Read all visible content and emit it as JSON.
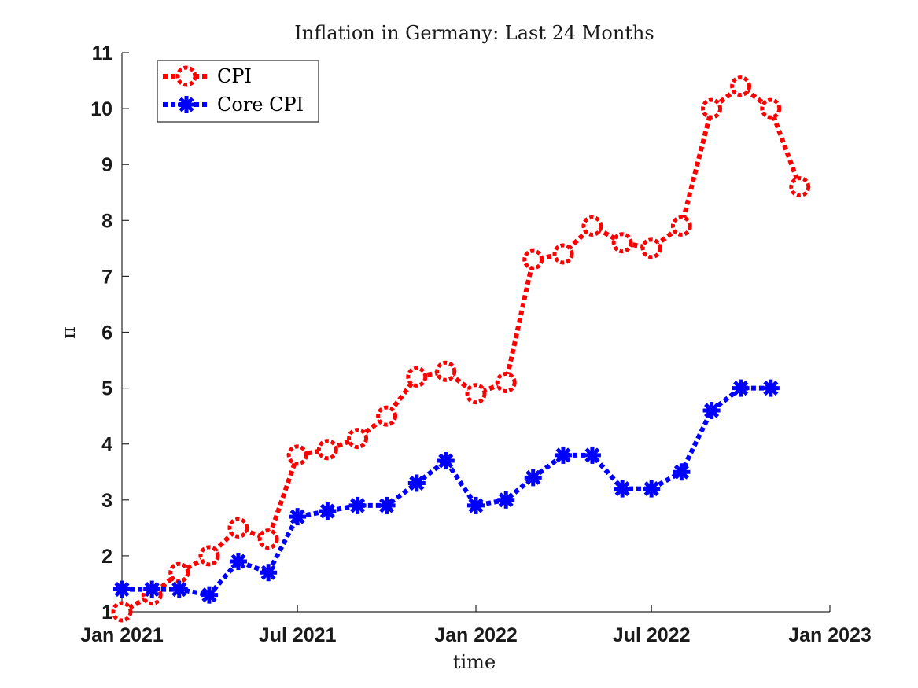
{
  "chart_data": {
    "type": "line",
    "title": "Inflation in Germany: Last 24 Months",
    "xlabel": "time",
    "ylabel": "π",
    "x_type": "date",
    "xlim": [
      "2021-01-01",
      "2023-01-01"
    ],
    "ylim": [
      1,
      11
    ],
    "x_ticks": [
      {
        "date": "2021-01-01",
        "label": "Jan 2021"
      },
      {
        "date": "2021-07-01",
        "label": "Jul 2021"
      },
      {
        "date": "2022-01-01",
        "label": "Jan 2022"
      },
      {
        "date": "2022-07-01",
        "label": "Jul 2022"
      },
      {
        "date": "2023-01-01",
        "label": "Jan 2023"
      }
    ],
    "y_ticks": [
      1,
      2,
      3,
      4,
      5,
      6,
      7,
      8,
      9,
      10,
      11
    ],
    "grid": false,
    "legend_position": "top-left",
    "series": [
      {
        "name": "CPI",
        "color": "#ff0000",
        "line_style": "dotted",
        "marker": "circle",
        "x": [
          "2021-01-01",
          "2021-02-01",
          "2021-03-01",
          "2021-04-01",
          "2021-05-01",
          "2021-06-01",
          "2021-07-01",
          "2021-08-01",
          "2021-09-01",
          "2021-10-01",
          "2021-11-01",
          "2021-12-01",
          "2022-01-01",
          "2022-02-01",
          "2022-03-01",
          "2022-04-01",
          "2022-05-01",
          "2022-06-01",
          "2022-07-01",
          "2022-08-01",
          "2022-09-01",
          "2022-10-01",
          "2022-11-01",
          "2022-12-01"
        ],
        "values": [
          1.0,
          1.3,
          1.7,
          2.0,
          2.5,
          2.3,
          3.8,
          3.9,
          4.1,
          4.5,
          5.2,
          5.3,
          4.9,
          5.1,
          7.3,
          7.4,
          7.9,
          7.6,
          7.5,
          7.9,
          10.0,
          10.4,
          10.0,
          8.6
        ]
      },
      {
        "name": "Core CPI",
        "color": "#0000ff",
        "line_style": "dotted",
        "marker": "star",
        "x": [
          "2021-01-01",
          "2021-02-01",
          "2021-03-01",
          "2021-04-01",
          "2021-05-01",
          "2021-06-01",
          "2021-07-01",
          "2021-08-01",
          "2021-09-01",
          "2021-10-01",
          "2021-11-01",
          "2021-12-01",
          "2022-01-01",
          "2022-02-01",
          "2022-03-01",
          "2022-04-01",
          "2022-05-01",
          "2022-06-01",
          "2022-07-01",
          "2022-08-01",
          "2022-09-01",
          "2022-10-01",
          "2022-11-01"
        ],
        "values": [
          1.4,
          1.4,
          1.4,
          1.3,
          1.9,
          1.7,
          2.7,
          2.8,
          2.9,
          2.9,
          3.3,
          3.7,
          2.9,
          3.0,
          3.4,
          3.8,
          3.8,
          3.2,
          3.2,
          3.5,
          4.6,
          5.0,
          5.0
        ]
      }
    ]
  }
}
